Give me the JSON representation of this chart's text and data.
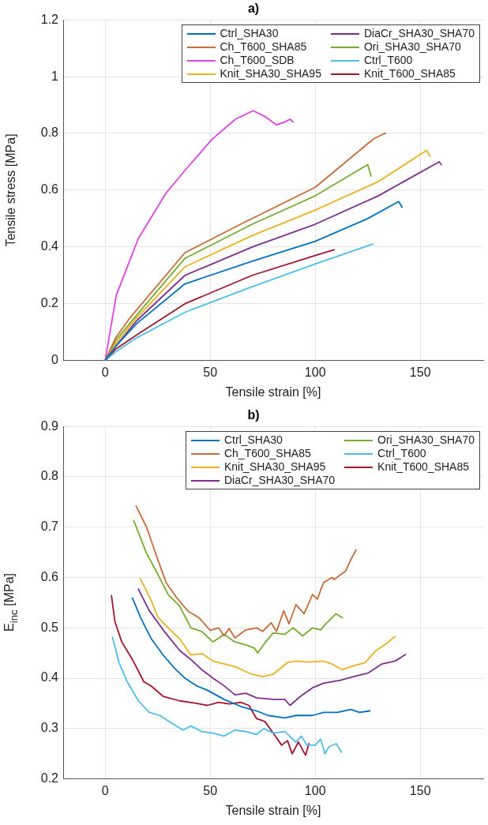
{
  "chart_data": [
    {
      "type": "line",
      "title": "a)",
      "xlabel": "Tensile strain [%]",
      "ylabel": "Tensile stress [MPa]",
      "xlim": [
        -20,
        180
      ],
      "xticks": [
        0,
        50,
        100,
        150
      ],
      "ylim": [
        0,
        1.2
      ],
      "yticks": [
        0,
        0.2,
        0.4,
        0.6,
        0.8,
        1,
        1.2
      ],
      "grid": true,
      "legend": "top right",
      "marker": "none",
      "line_style": "solid",
      "series": [
        {
          "name": "Ctrl_SHA30",
          "color": "#0072bd",
          "x": [
            0,
            5,
            15,
            38,
            70,
            100,
            125,
            139.7,
            141.4
          ],
          "values": [
            0,
            0.05,
            0.13,
            0.27,
            0.35,
            0.42,
            0.5,
            0.56,
            0.54
          ]
        },
        {
          "name": "Ch_T600_SHA85",
          "color": "#c86a3a",
          "x": [
            0,
            5,
            11.8,
            38,
            64.5,
            100,
            127.6,
            133,
            133.5
          ],
          "values": [
            0,
            0.08,
            0.15,
            0.38,
            0.48,
            0.61,
            0.78,
            0.8,
            0.8
          ]
        },
        {
          "name": "Ch_T600_SDB",
          "color": "#e040e0",
          "x": [
            0,
            5.3,
            15.8,
            29,
            38,
            51,
            62,
            70.4,
            76,
            81.6,
            85.5,
            88,
            89.5
          ],
          "values": [
            0,
            0.23,
            0.43,
            0.59,
            0.67,
            0.78,
            0.85,
            0.88,
            0.86,
            0.83,
            0.84,
            0.85,
            0.84
          ]
        },
        {
          "name": "Knit_SHA30_SHA95",
          "color": "#edb120",
          "x": [
            0,
            5,
            15,
            38,
            70,
            100,
            130,
            153,
            154.6
          ],
          "values": [
            0,
            0.06,
            0.15,
            0.33,
            0.44,
            0.53,
            0.63,
            0.74,
            0.72
          ]
        },
        {
          "name": "DiaCr_SHA30_SHA70",
          "color": "#7e2f8e",
          "x": [
            0,
            5,
            15,
            38,
            70,
            100,
            130,
            159,
            160
          ],
          "values": [
            0,
            0.05,
            0.14,
            0.3,
            0.4,
            0.48,
            0.58,
            0.7,
            0.69
          ]
        },
        {
          "name": "Ori_SHA30_SHA70",
          "color": "#77ac30",
          "x": [
            0,
            5,
            15,
            38,
            70,
            100,
            125,
            126.6
          ],
          "values": [
            0,
            0.07,
            0.16,
            0.36,
            0.48,
            0.58,
            0.69,
            0.65
          ]
        },
        {
          "name": "Ctrl_T600",
          "color": "#4dbeee",
          "x": [
            0,
            5,
            15,
            38,
            70,
            100,
            127.4
          ],
          "values": [
            0,
            0.03,
            0.08,
            0.17,
            0.26,
            0.34,
            0.41
          ]
        },
        {
          "name": "Knit_T600_SHA85",
          "color": "#a2142f",
          "x": [
            0,
            5,
            15,
            38,
            70,
            100,
            109
          ],
          "values": [
            0,
            0.04,
            0.09,
            0.2,
            0.3,
            0.37,
            0.39
          ]
        }
      ]
    },
    {
      "type": "line",
      "title": "b)",
      "xlabel": "Tensile strain [%]",
      "ylabel": "E$_{inc}$ [MPa]",
      "xlim": [
        -20,
        180
      ],
      "xticks": [
        0,
        50,
        100,
        150
      ],
      "ylim": [
        0.2,
        0.9
      ],
      "yticks": [
        0.2,
        0.3,
        0.4,
        0.5,
        0.6,
        0.7,
        0.8,
        0.9
      ],
      "grid": true,
      "legend": "top right",
      "marker": "none",
      "line_style": "solid",
      "series": [
        {
          "name": "Ctrl_SHA30",
          "color": "#0072bd",
          "x": [
            13,
            17,
            22,
            27.6,
            33,
            38,
            43.4,
            48.7,
            56.6,
            64.5,
            72,
            77.6,
            85.5,
            90.8,
            98.7,
            104,
            110.5,
            117,
            121,
            126
          ],
          "values": [
            0.559,
            0.519,
            0.478,
            0.446,
            0.42,
            0.4,
            0.385,
            0.376,
            0.358,
            0.344,
            0.335,
            0.326,
            0.321,
            0.326,
            0.326,
            0.332,
            0.332,
            0.338,
            0.332,
            0.335
          ]
        },
        {
          "name": "Ch_T600_SHA85",
          "color": "#c86a3a",
          "x": [
            14.7,
            19.7,
            25,
            29,
            34,
            39.5,
            44.7,
            50,
            54,
            56.6,
            59,
            61.8,
            67,
            72,
            75,
            79,
            81.6,
            85,
            87.5,
            90.8,
            94.7,
            98.7,
            101,
            104,
            108,
            109,
            114.5,
            117,
            119.5
          ],
          "values": [
            0.742,
            0.7,
            0.636,
            0.59,
            0.56,
            0.533,
            0.52,
            0.495,
            0.5,
            0.484,
            0.499,
            0.48,
            0.496,
            0.5,
            0.493,
            0.51,
            0.493,
            0.534,
            0.508,
            0.546,
            0.528,
            0.566,
            0.557,
            0.59,
            0.6,
            0.596,
            0.613,
            0.636,
            0.655
          ]
        },
        {
          "name": "Knit_SHA30_SHA95",
          "color": "#edb120",
          "x": [
            16.7,
            22,
            25,
            30,
            35.5,
            40.8,
            46,
            51.3,
            61.8,
            69.7,
            75,
            80,
            86.8,
            90.8,
            97,
            104,
            108,
            113,
            117,
            123.7,
            129,
            134,
            138
          ],
          "values": [
            0.598,
            0.554,
            0.522,
            0.5,
            0.478,
            0.446,
            0.449,
            0.434,
            0.423,
            0.408,
            0.403,
            0.408,
            0.431,
            0.434,
            0.432,
            0.434,
            0.428,
            0.417,
            0.423,
            0.431,
            0.455,
            0.469,
            0.483
          ]
        },
        {
          "name": "DiaCr_SHA30_SHA70",
          "color": "#7e2f8e",
          "x": [
            15.8,
            21,
            27.6,
            35.5,
            40.8,
            46,
            51.3,
            56.6,
            61.8,
            67,
            72,
            80,
            85.5,
            88,
            93,
            98.7,
            104,
            112,
            117,
            125,
            131.6,
            138,
            143
          ],
          "values": [
            0.577,
            0.534,
            0.496,
            0.455,
            0.437,
            0.417,
            0.4,
            0.385,
            0.367,
            0.37,
            0.361,
            0.358,
            0.358,
            0.346,
            0.364,
            0.381,
            0.39,
            0.396,
            0.402,
            0.41,
            0.428,
            0.434,
            0.447
          ]
        },
        {
          "name": "Ori_SHA30_SHA70",
          "color": "#77ac30",
          "x": [
            13.6,
            19.7,
            25,
            30,
            35.5,
            40.8,
            46,
            51.3,
            56.6,
            61.8,
            67,
            71,
            72.6,
            76,
            80,
            85.5,
            89.5,
            94,
            98.7,
            102.6,
            105,
            109.9,
            113
          ],
          "values": [
            0.713,
            0.648,
            0.607,
            0.566,
            0.543,
            0.5,
            0.493,
            0.472,
            0.487,
            0.472,
            0.466,
            0.46,
            0.45,
            0.47,
            0.49,
            0.487,
            0.5,
            0.484,
            0.5,
            0.496,
            0.508,
            0.528,
            0.52
          ]
        },
        {
          "name": "Ctrl_T600",
          "color": "#4dbeee",
          "x": [
            3.5,
            6.6,
            10.5,
            15.8,
            21,
            26,
            31.6,
            37,
            40.8,
            46,
            51.3,
            56.6,
            61.8,
            67,
            72,
            75.5,
            80,
            85.5,
            90.8,
            93.4,
            96,
            100,
            102.6,
            104.6,
            106.6,
            110,
            112.5
          ],
          "values": [
            0.481,
            0.431,
            0.393,
            0.355,
            0.332,
            0.326,
            0.311,
            0.297,
            0.305,
            0.294,
            0.291,
            0.285,
            0.297,
            0.294,
            0.288,
            0.3,
            0.291,
            0.294,
            0.273,
            0.285,
            0.267,
            0.267,
            0.279,
            0.25,
            0.264,
            0.27,
            0.253
          ]
        },
        {
          "name": "Knit_T600_SHA85",
          "color": "#a2142f",
          "x": [
            3,
            4.6,
            7.9,
            13,
            18.4,
            22,
            27.6,
            35.5,
            43.4,
            48.7,
            54,
            59,
            64.5,
            68.4,
            72,
            76,
            80,
            84,
            86.8,
            89,
            92,
            95.4,
            97
          ],
          "values": [
            0.564,
            0.513,
            0.472,
            0.437,
            0.393,
            0.384,
            0.364,
            0.355,
            0.35,
            0.346,
            0.352,
            0.349,
            0.352,
            0.346,
            0.32,
            0.314,
            0.291,
            0.267,
            0.276,
            0.25,
            0.273,
            0.247,
            0.27
          ]
        }
      ]
    }
  ]
}
